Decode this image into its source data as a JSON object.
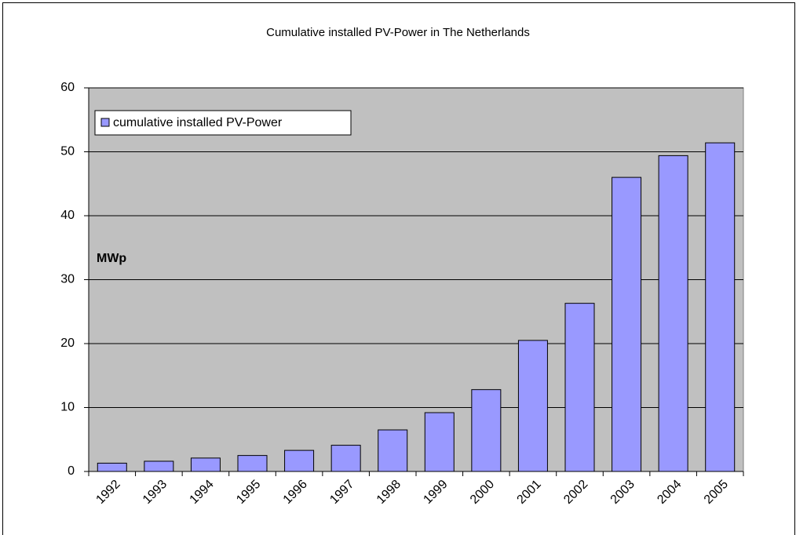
{
  "chart_data": {
    "type": "bar",
    "title": "Cumulative installed PV-Power in The Netherlands",
    "y_label": "MWp",
    "categories": [
      "1992",
      "1993",
      "1994",
      "1995",
      "1996",
      "1997",
      "1998",
      "1999",
      "2000",
      "2001",
      "2002",
      "2003",
      "2004",
      "2005"
    ],
    "series": [
      {
        "name": "cumulative installed PV-Power",
        "color": "#9999ff",
        "values": [
          1.3,
          1.6,
          2.1,
          2.5,
          3.3,
          4.1,
          6.5,
          9.2,
          12.8,
          20.5,
          26.3,
          46.0,
          49.4,
          51.4
        ]
      }
    ],
    "ylim": [
      0,
      60
    ],
    "yticks": [
      0,
      10,
      20,
      30,
      40,
      50,
      60
    ],
    "grid": true,
    "plot_background": "#c0c0c0",
    "legend": "upper left"
  }
}
